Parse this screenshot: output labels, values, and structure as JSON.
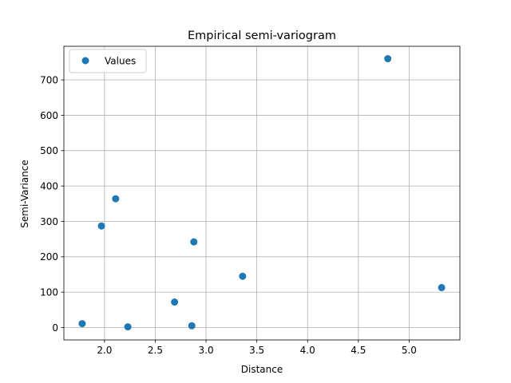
{
  "chart_data": {
    "type": "scatter",
    "title": "Empirical semi-variogram",
    "xlabel": "Distance",
    "ylabel": "Semi-Variance",
    "xlim": [
      1.6,
      5.5
    ],
    "ylim": [
      -35,
      795
    ],
    "xticks": [
      2.0,
      2.5,
      3.0,
      3.5,
      4.0,
      4.5,
      5.0
    ],
    "xtick_labels": [
      "2.0",
      "2.5",
      "3.0",
      "3.5",
      "4.0",
      "4.5",
      "5.0"
    ],
    "yticks": [
      0,
      100,
      200,
      300,
      400,
      500,
      600,
      700
    ],
    "ytick_labels": [
      "0",
      "100",
      "200",
      "300",
      "400",
      "500",
      "600",
      "700"
    ],
    "grid": true,
    "legend": {
      "placement": "upper-left"
    },
    "series": [
      {
        "name": "Values",
        "color": "#1f77b4",
        "marker": "circle",
        "points": [
          {
            "x": 1.78,
            "y": 11
          },
          {
            "x": 1.97,
            "y": 287
          },
          {
            "x": 2.11,
            "y": 364
          },
          {
            "x": 2.23,
            "y": 2
          },
          {
            "x": 2.69,
            "y": 72
          },
          {
            "x": 2.86,
            "y": 5
          },
          {
            "x": 2.88,
            "y": 242
          },
          {
            "x": 3.36,
            "y": 145
          },
          {
            "x": 4.79,
            "y": 760
          },
          {
            "x": 5.32,
            "y": 113
          }
        ]
      }
    ]
  }
}
